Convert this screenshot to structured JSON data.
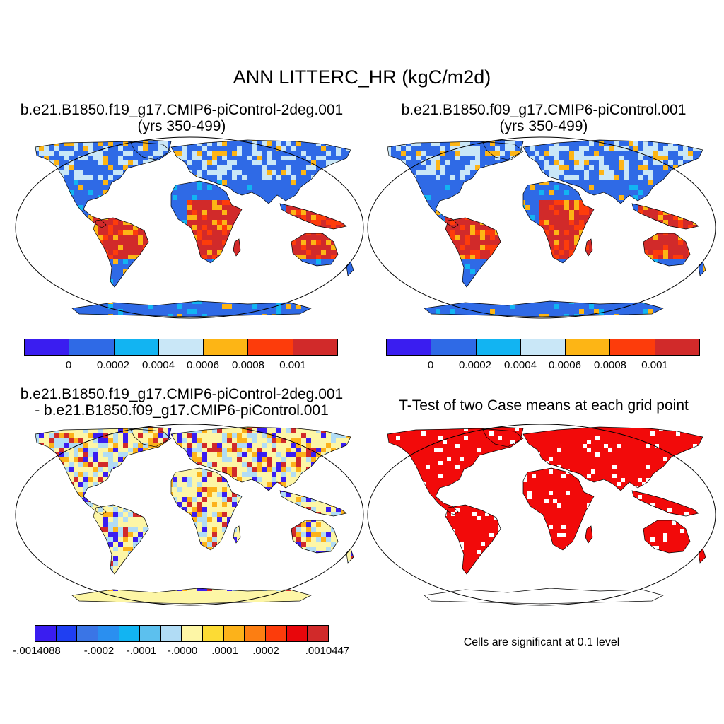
{
  "title": "ANN LITTERC_HR (kgC/m2d)",
  "panels": [
    {
      "line1": "b.e21.B1850.f19_g17.CMIP6-piControl-2deg.001",
      "line2": "(yrs 350-499)"
    },
    {
      "line1": "b.e21.B1850.f09_g17.CMIP6-piControl.001",
      "line2": "(yrs 350-499)"
    },
    {
      "line1": "b.e21.B1850.f19_g17.CMIP6-piControl-2deg.001",
      "line2": "- b.e21.B1850.f09_g17.CMIP6-piControl.001"
    },
    {
      "line1": "T-Test of two Case means at each grid point",
      "line2": ""
    }
  ],
  "colorbar_abs": {
    "colors": [
      "#3a1df0",
      "#2f6ae6",
      "#12b4f2",
      "#c9e7f7",
      "#fdb515",
      "#fd3c0b",
      "#d12a2a"
    ],
    "labels": [
      "0",
      "0.0002",
      "0.0004",
      "0.0006",
      "0.0008",
      "0.001"
    ]
  },
  "colorbar_diff": {
    "colors": [
      "#3a1df0",
      "#1f3ff2",
      "#3a75e6",
      "#2a8ff0",
      "#12b4f2",
      "#5cc0ee",
      "#b1dcf5",
      "#fdf6a6",
      "#fcdb34",
      "#fcb21a",
      "#fc7e12",
      "#fc3c0b",
      "#e8060b",
      "#d12a2a"
    ],
    "labels": [
      "-.0014088",
      "-.0002",
      "-.0001",
      "-.0000",
      ".0001",
      ".0002",
      ".0010447"
    ]
  },
  "note": "Cells are significant at 0.1 level",
  "map_colors": {
    "ocean": "#ffffff",
    "abs_base": "#2f6ae6",
    "abs_tropic": "#d12a2a",
    "abs_warm": "#fd3c0b",
    "abs_mid": "#fdb515",
    "abs_light": "#c9e7f7",
    "abs_cyan": "#12b4f2",
    "diff_base": "#fdf6a6",
    "diff_light_blue": "#b1dcf5",
    "diff_orange": "#fcb21a",
    "diff_red": "#d12a2a",
    "diff_blue": "#3a1df0",
    "sig": "#f20a0a"
  }
}
